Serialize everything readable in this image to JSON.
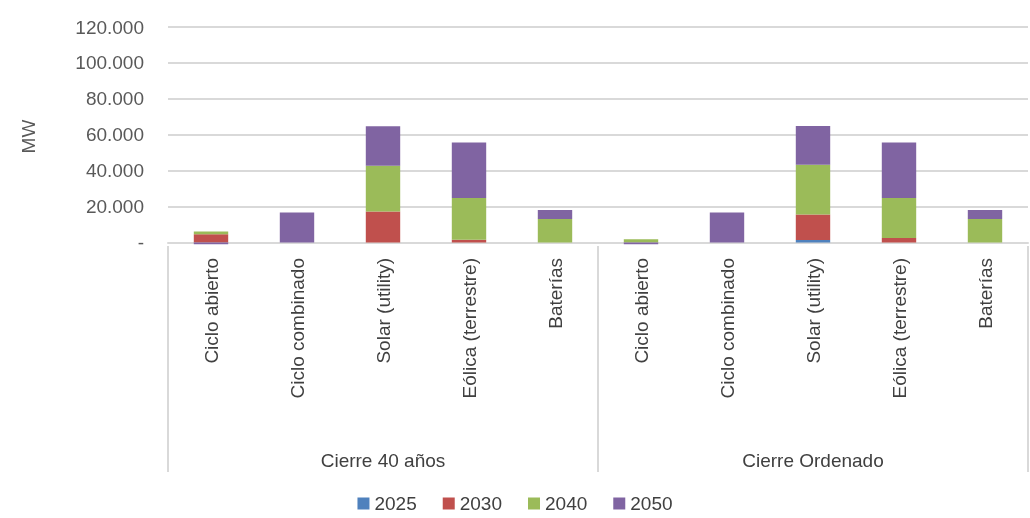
{
  "chart_data": {
    "type": "bar",
    "stacked": true,
    "ylabel": "MW",
    "categories": [
      "Ciclo abierto",
      "Ciclo combinado",
      "Solar (utility)",
      "Eólica (terrestre)",
      "Baterías",
      "Ciclo abierto",
      "Ciclo combinado",
      "Solar (utility)",
      "Eólica (terrestre)",
      "Baterías"
    ],
    "series": [
      {
        "name": "2025",
        "color": "#4f81bd",
        "values": [
          0,
          0,
          0,
          0,
          0,
          0,
          0,
          1300,
          0,
          0
        ]
      },
      {
        "name": "2030",
        "color": "#c0504d",
        "values": [
          4600,
          0,
          17200,
          1500,
          0,
          0,
          0,
          14300,
          2400,
          0
        ]
      },
      {
        "name": "2040",
        "color": "#9bbb59",
        "values": [
          1500,
          0,
          25500,
          23300,
          13000,
          1700,
          0,
          27700,
          22400,
          13000
        ]
      },
      {
        "name": "2050",
        "color": "#8064a2",
        "values": [
          -1000,
          16700,
          22000,
          30800,
          5000,
          -1000,
          16700,
          21500,
          30800,
          5000
        ]
      }
    ],
    "ylim": [
      -2000,
      120000
    ],
    "yticks": [
      {
        "value": 0,
        "label": "-"
      },
      {
        "value": 20000,
        "label": "20.000"
      },
      {
        "value": 40000,
        "label": "40.000"
      },
      {
        "value": 60000,
        "label": "60.000"
      },
      {
        "value": 80000,
        "label": "80.000"
      },
      {
        "value": 100000,
        "label": "100.000"
      },
      {
        "value": 120000,
        "label": "120.000"
      }
    ],
    "grid": "y",
    "legend": "bottom",
    "annotations": [
      "Cierre 40 años",
      "Cierre Ordenado"
    ]
  }
}
